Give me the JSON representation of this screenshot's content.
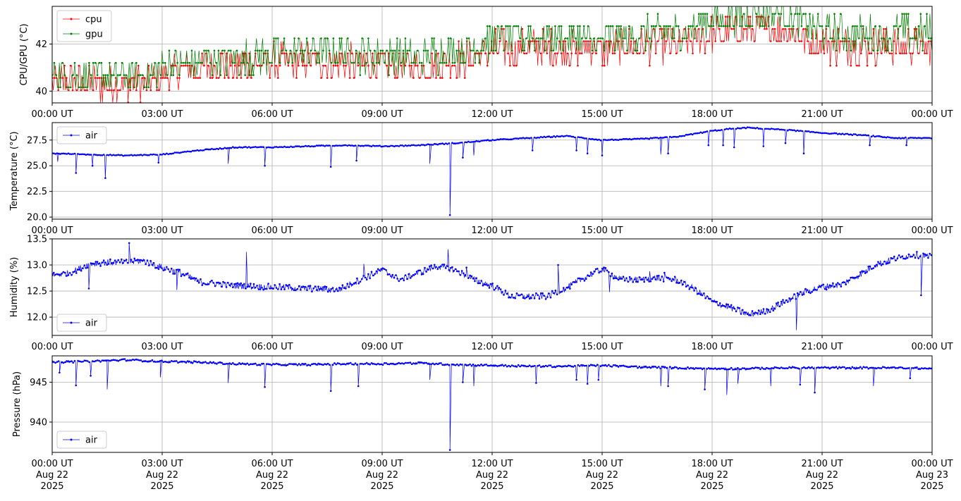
{
  "chart_data": [
    {
      "type": "line",
      "ylabel": "CPU/GPU (°C)",
      "ylim": [
        39.5,
        43.6
      ],
      "yticks": [
        40,
        42
      ],
      "ytick_labels": [
        "40",
        "42"
      ],
      "xlim": [
        "2025-08-22T00:00Z",
        "2025-08-23T00:00Z"
      ],
      "xtick_labels": [
        "00:00 UT",
        "03:00 UT",
        "06:00 UT",
        "09:00 UT",
        "12:00 UT",
        "15:00 UT",
        "18:00 UT",
        "21:00 UT",
        "00:00 UT"
      ],
      "grid": true,
      "legend": "upper left",
      "series": [
        {
          "name": "cpu",
          "color": "#ff0000",
          "x_hours": [
            0,
            1,
            2,
            2.8,
            3,
            4,
            5,
            6,
            7,
            8,
            9,
            10,
            11,
            11.5,
            12,
            13,
            14,
            15,
            16,
            17,
            17.5,
            18,
            19,
            20,
            21,
            22,
            23,
            24
          ],
          "values": [
            40.5,
            40.3,
            40.3,
            40.4,
            40.7,
            41.0,
            41.1,
            41.2,
            41.3,
            41.2,
            41.1,
            41.0,
            41.3,
            41.5,
            41.8,
            41.8,
            41.8,
            41.8,
            41.9,
            42.0,
            42.2,
            42.4,
            42.6,
            42.6,
            42.0,
            41.9,
            41.9,
            41.9
          ]
        },
        {
          "name": "gpu",
          "color": "#008000",
          "x_hours": [
            0,
            1,
            2,
            2.8,
            3,
            4,
            5,
            6,
            7,
            8,
            9,
            10,
            11,
            11.5,
            12,
            13,
            14,
            15,
            16,
            17,
            17.5,
            18,
            19,
            20,
            21,
            22,
            23,
            24
          ],
          "values": [
            40.7,
            40.5,
            40.5,
            40.6,
            40.9,
            41.2,
            41.3,
            41.4,
            41.5,
            41.5,
            41.4,
            41.3,
            41.6,
            41.8,
            42.0,
            42.2,
            42.1,
            42.0,
            42.2,
            42.4,
            42.6,
            42.9,
            43.1,
            43.1,
            42.4,
            42.3,
            42.3,
            42.3
          ]
        }
      ]
    },
    {
      "type": "line",
      "ylabel": "Temperature (°C)",
      "ylim": [
        19.8,
        29.2
      ],
      "yticks": [
        20.0,
        22.5,
        25.0,
        27.5
      ],
      "ytick_labels": [
        "20.0",
        "22.5",
        "25.0",
        "27.5"
      ],
      "xlim": [
        "2025-08-22T00:00Z",
        "2025-08-23T00:00Z"
      ],
      "xtick_labels": [
        "00:00 UT",
        "03:00 UT",
        "06:00 UT",
        "09:00 UT",
        "12:00 UT",
        "15:00 UT",
        "18:00 UT",
        "21:00 UT",
        "00:00 UT"
      ],
      "grid": true,
      "legend": "upper left",
      "series": [
        {
          "name": "air",
          "color": "#0000ff",
          "x_hours": [
            0,
            1,
            2,
            3,
            4,
            5,
            6,
            7,
            8,
            9,
            10,
            11,
            12,
            13,
            14,
            15,
            16,
            17,
            18,
            18.5,
            19,
            20,
            21,
            22,
            23,
            24
          ],
          "values": [
            26.2,
            26.1,
            26.0,
            26.1,
            26.5,
            26.8,
            26.8,
            26.9,
            27.0,
            26.9,
            27.0,
            27.2,
            27.5,
            27.7,
            27.9,
            27.5,
            27.6,
            27.8,
            28.4,
            28.6,
            28.7,
            28.5,
            28.2,
            28.0,
            27.7,
            27.7
          ],
          "dips": [
            [
              0.15,
              25.4
            ],
            [
              0.65,
              24.3
            ],
            [
              1.1,
              25.0
            ],
            [
              1.45,
              23.8
            ],
            [
              2.9,
              25.3
            ],
            [
              4.8,
              25.2
            ],
            [
              5.8,
              25.0
            ],
            [
              7.6,
              24.9
            ],
            [
              8.3,
              25.5
            ],
            [
              10.3,
              25.2
            ],
            [
              10.85,
              20.2
            ],
            [
              11.2,
              25.8
            ],
            [
              11.5,
              26.0
            ],
            [
              13.1,
              26.5
            ],
            [
              14.3,
              26.5
            ],
            [
              14.6,
              26.2
            ],
            [
              15.0,
              26.0
            ],
            [
              16.6,
              26.1
            ],
            [
              16.8,
              26.2
            ],
            [
              17.9,
              27.0
            ],
            [
              18.3,
              27.0
            ],
            [
              18.6,
              26.8
            ],
            [
              19.4,
              26.9
            ],
            [
              20.0,
              27.2
            ],
            [
              20.5,
              26.2
            ],
            [
              22.3,
              27.0
            ],
            [
              23.3,
              27.0
            ]
          ]
        }
      ]
    },
    {
      "type": "line",
      "ylabel": "Humidity (%)",
      "ylim": [
        11.65,
        13.5
      ],
      "yticks": [
        12.0,
        12.5,
        13.0,
        13.5
      ],
      "ytick_labels": [
        "12.0",
        "12.5",
        "13.0",
        "13.5"
      ],
      "xlim": [
        "2025-08-22T00:00Z",
        "2025-08-23T00:00Z"
      ],
      "xtick_labels": [
        "00:00 UT",
        "03:00 UT",
        "06:00 UT",
        "09:00 UT",
        "12:00 UT",
        "15:00 UT",
        "18:00 UT",
        "21:00 UT",
        "00:00 UT"
      ],
      "grid": true,
      "legend": "lower left",
      "series": [
        {
          "name": "air",
          "color": "#0000ff",
          "x_hours": [
            0,
            0.5,
            1,
            1.5,
            2,
            2.5,
            3,
            3.5,
            4,
            5,
            6,
            7,
            7.8,
            8.5,
            9,
            9.5,
            10,
            10.5,
            11,
            11.5,
            12,
            12.5,
            13,
            13.5,
            14,
            14.5,
            15,
            15.5,
            16,
            16.5,
            17,
            17.5,
            18,
            18.5,
            19,
            19.5,
            20,
            20.5,
            21,
            21.5,
            22,
            22.5,
            23,
            23.5,
            24
          ],
          "values": [
            12.8,
            12.85,
            13.02,
            13.05,
            13.05,
            13.08,
            12.95,
            12.85,
            12.68,
            12.6,
            12.58,
            12.55,
            12.52,
            12.75,
            12.9,
            12.72,
            12.85,
            12.98,
            12.9,
            12.72,
            12.6,
            12.4,
            12.4,
            12.4,
            12.55,
            12.75,
            12.92,
            12.72,
            12.72,
            12.75,
            12.72,
            12.55,
            12.3,
            12.18,
            12.05,
            12.12,
            12.3,
            12.48,
            12.58,
            12.62,
            12.8,
            13.02,
            13.12,
            13.2,
            13.15
          ],
          "spikes": [
            [
              1.0,
              12.55
            ],
            [
              2.1,
              13.42
            ],
            [
              3.4,
              12.52
            ],
            [
              5.3,
              13.25
            ],
            [
              8.5,
              13.02
            ],
            [
              10.8,
              13.3
            ],
            [
              11.3,
              12.95
            ],
            [
              13.8,
              13.0
            ],
            [
              14.0,
              12.55
            ],
            [
              15.2,
              12.48
            ],
            [
              16.3,
              12.88
            ],
            [
              16.7,
              12.85
            ],
            [
              20.3,
              11.75
            ],
            [
              23.7,
              12.42
            ]
          ]
        }
      ]
    },
    {
      "type": "line",
      "ylabel": "Pressure (hPa)",
      "ylim": [
        936.2,
        948.3
      ],
      "yticks": [
        940,
        945
      ],
      "ytick_labels": [
        "940",
        "945"
      ],
      "xlim": [
        "2025-08-22T00:00Z",
        "2025-08-23T00:00Z"
      ],
      "xtick_labels": [
        "00:00 UT\nAug 22\n2025",
        "03:00 UT\nAug 22\n2025",
        "06:00 UT\nAug 22\n2025",
        "09:00 UT\nAug 22\n2025",
        "12:00 UT\nAug 22\n2025",
        "15:00 UT\nAug 22\n2025",
        "18:00 UT\nAug 22\n2025",
        "21:00 UT\nAug 22\n2025",
        "00:00 UT\nAug 23\n2025"
      ],
      "grid": true,
      "legend": "lower left",
      "series": [
        {
          "name": "air",
          "color": "#0000ff",
          "x_hours": [
            0,
            1,
            2,
            3,
            4,
            5,
            6,
            7,
            8,
            9,
            10,
            11,
            12,
            13,
            14,
            15,
            16,
            17,
            18,
            19,
            20,
            21,
            22,
            23,
            24
          ],
          "values": [
            947.5,
            947.6,
            947.8,
            947.6,
            947.5,
            947.3,
            947.2,
            947.2,
            947.3,
            947.3,
            947.4,
            947.2,
            947.1,
            947.0,
            947.0,
            947.1,
            946.9,
            946.8,
            946.7,
            946.7,
            946.8,
            946.8,
            946.8,
            946.8,
            946.7
          ],
          "dips": [
            [
              0.2,
              946.2
            ],
            [
              0.65,
              944.6
            ],
            [
              1.05,
              945.8
            ],
            [
              1.5,
              944.1
            ],
            [
              2.95,
              945.6
            ],
            [
              4.8,
              944.9
            ],
            [
              5.8,
              944.4
            ],
            [
              7.6,
              943.9
            ],
            [
              8.35,
              944.5
            ],
            [
              10.3,
              945.3
            ],
            [
              10.85,
              936.5
            ],
            [
              11.2,
              945.0
            ],
            [
              11.5,
              944.5
            ],
            [
              13.2,
              944.9
            ],
            [
              14.3,
              945.3
            ],
            [
              14.6,
              944.8
            ],
            [
              14.9,
              945.3
            ],
            [
              16.6,
              944.5
            ],
            [
              16.8,
              944.5
            ],
            [
              17.8,
              944.1
            ],
            [
              18.4,
              943.4
            ],
            [
              18.7,
              944.8
            ],
            [
              19.6,
              944.5
            ],
            [
              20.4,
              944.7
            ],
            [
              20.8,
              943.7
            ],
            [
              22.4,
              944.5
            ],
            [
              23.4,
              945.5
            ]
          ]
        }
      ]
    }
  ]
}
